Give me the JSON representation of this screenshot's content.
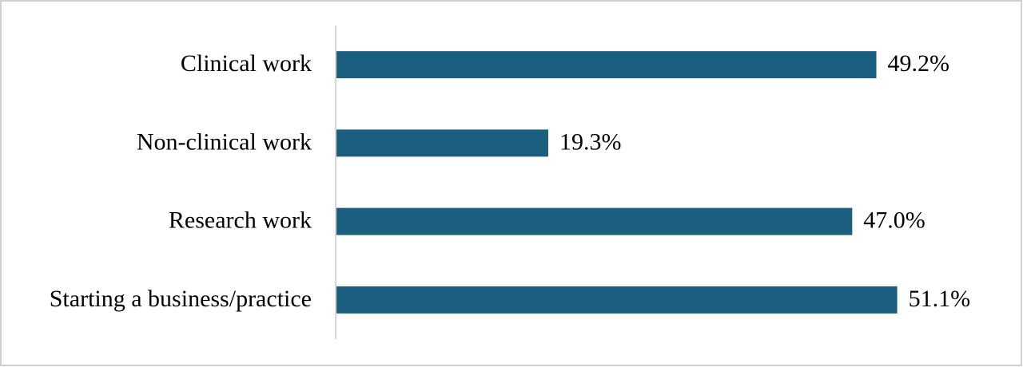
{
  "chart_data": {
    "type": "bar",
    "orientation": "horizontal",
    "categories": [
      "Clinical work",
      "Non-clinical work",
      "Research work",
      "Starting a business/practice"
    ],
    "values": [
      49.2,
      19.3,
      47.0,
      51.1
    ],
    "value_labels": [
      "49.2%",
      "19.3%",
      "47.0%",
      "51.1%"
    ],
    "color": "#1b5f80"
  }
}
